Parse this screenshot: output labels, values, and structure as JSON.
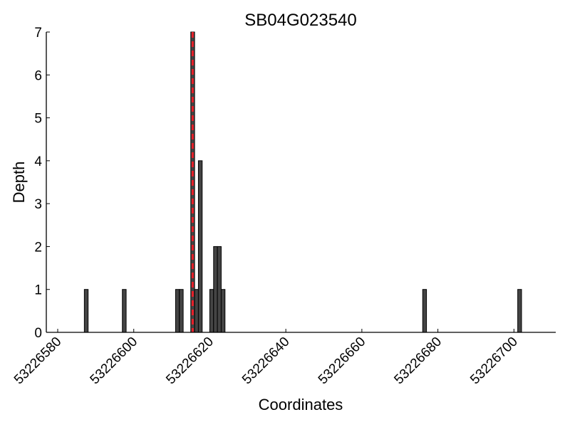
{
  "chart_data": {
    "type": "bar",
    "title": "SB04G023540",
    "x_label": "Coordinates",
    "y_label": "Depth",
    "x": [
      53226587,
      53226597,
      53226611,
      53226612,
      53226615,
      53226616,
      53226617,
      53226620,
      53226621,
      53226622,
      53226623,
      53226676,
      53226701
    ],
    "values": [
      1,
      1,
      1,
      1,
      7,
      1,
      4,
      1,
      2,
      2,
      1,
      1,
      1
    ],
    "color": "#444444",
    "xlim": [
      53226577,
      53226711
    ],
    "ylim": [
      0,
      7
    ],
    "xticks": [
      53226580,
      53226600,
      53226620,
      53226640,
      53226660,
      53226680,
      53226700
    ],
    "yticks": [
      0,
      1,
      2,
      3,
      4,
      5,
      6,
      7
    ],
    "vline": {
      "x": 53226615.5,
      "color": "#e8202a"
    }
  }
}
